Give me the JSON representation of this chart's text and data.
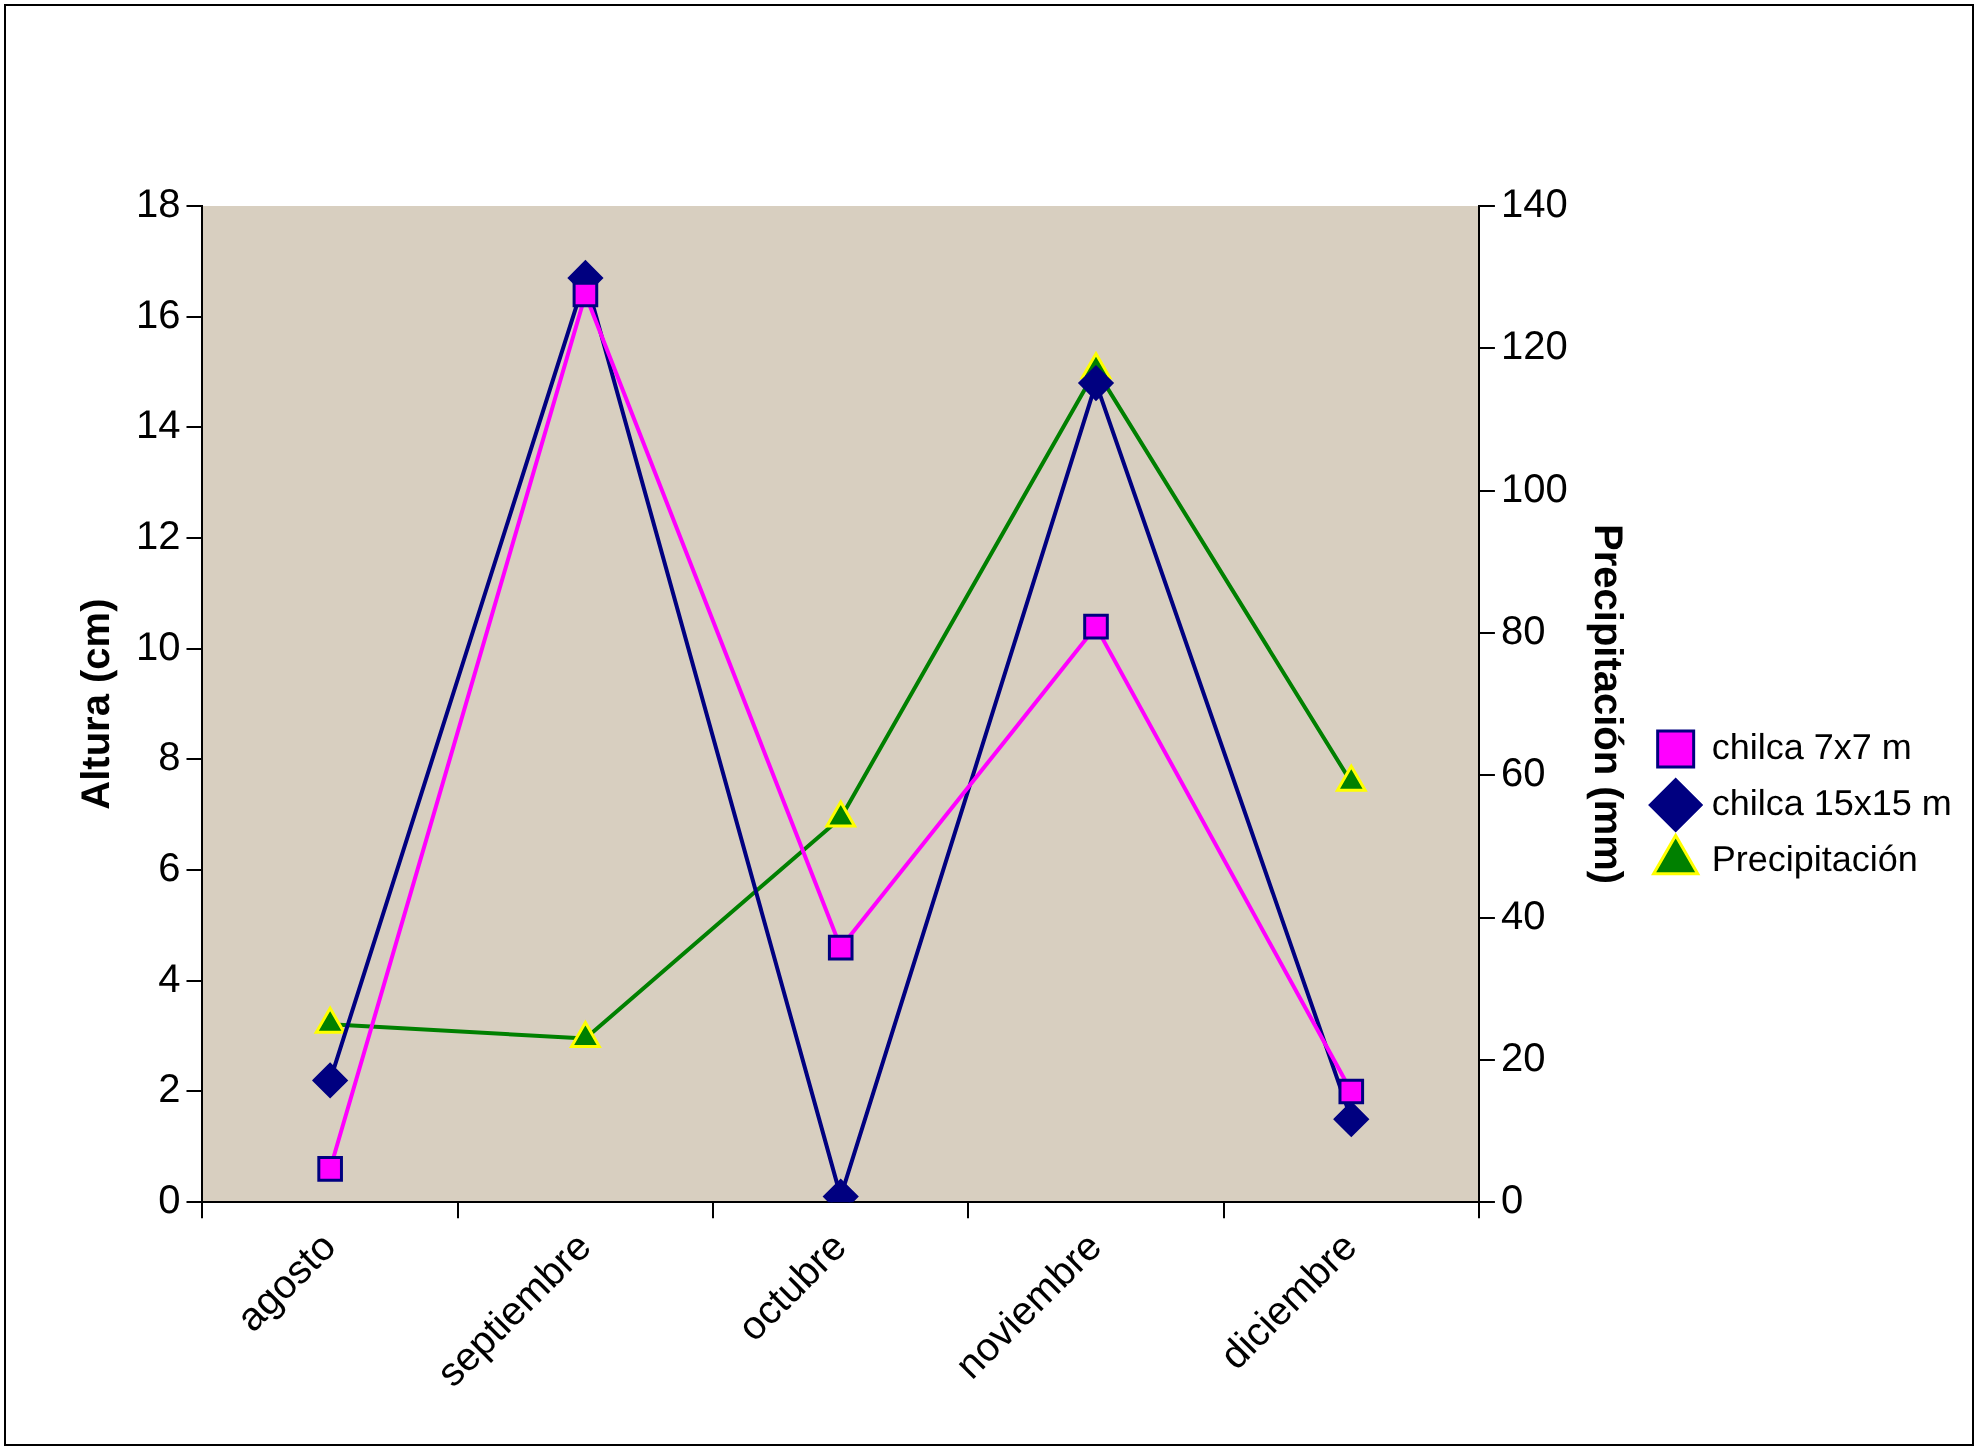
{
  "chart_data": {
    "type": "line",
    "categories": [
      "agosto",
      "septiembre",
      "octubre",
      "noviembre",
      "diciembre"
    ],
    "ylabel": "Altura (cm)",
    "y2label": "Precipitación (mm)",
    "ylim": [
      0,
      18
    ],
    "yticks": [
      0,
      2,
      4,
      6,
      8,
      10,
      12,
      14,
      16,
      18
    ],
    "y2lim": [
      0,
      140
    ],
    "y2ticks": [
      0,
      20,
      40,
      60,
      80,
      100,
      120,
      140
    ],
    "grid": false,
    "legend": "right",
    "line_style": "solid",
    "series": [
      {
        "name": "chilca 7x7 m",
        "color": "#ff00ff",
        "marker": "square",
        "values": [
          0.6,
          16.4,
          4.6,
          10.4,
          2.0
        ]
      },
      {
        "name": "chilca 15x15 m",
        "color": "#000080",
        "marker": "diamond",
        "values": [
          2.2,
          16.7,
          0.1,
          14.8,
          1.5
        ]
      },
      {
        "name": "Precipitación",
        "color": "#008000",
        "marker": "triangle",
        "axis": "y2",
        "values": [
          25,
          23,
          54,
          117,
          59
        ]
      }
    ]
  }
}
